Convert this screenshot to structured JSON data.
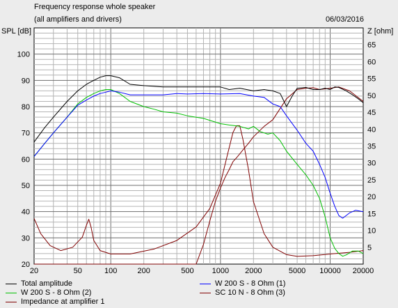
{
  "chart_data": {
    "type": "line",
    "title": "Frequency response whole speaker",
    "subtitle": "(all amplifiers and drivers)",
    "date": "06/03/2016",
    "ylabel_left": "SPL [dB]",
    "ylabel_right": "Z [ohm]",
    "x_scale": "log",
    "xlim": [
      20,
      20000
    ],
    "ylim_left": [
      20,
      110
    ],
    "ylim_right": [
      0,
      70
    ],
    "x_ticks": [
      20,
      50,
      100,
      200,
      500,
      1000,
      2000,
      5000,
      10000,
      20000
    ],
    "x_tick_labels": [
      "20",
      "50",
      "100",
      "200",
      "500",
      "1000",
      "2000",
      "5000",
      "10000",
      "20000"
    ],
    "y_left_ticks": [
      20,
      30,
      40,
      50,
      60,
      70,
      80,
      90,
      100
    ],
    "y_left_tick_labels": [
      "20",
      "30",
      "40",
      "50",
      "60",
      "70",
      "80",
      "90",
      "100"
    ],
    "y_right_ticks": [
      5,
      10,
      15,
      20,
      25,
      30,
      35,
      40,
      45,
      50,
      55,
      60,
      65
    ],
    "y_right_tick_labels": [
      "5",
      "10",
      "15",
      "20",
      "25",
      "30",
      "35",
      "40",
      "45",
      "50",
      "55",
      "60",
      "65"
    ],
    "grid": true,
    "series": [
      {
        "name": "Total amplitude",
        "color": "#000000",
        "axis": "left",
        "x": [
          20,
          25,
          30,
          40,
          50,
          60,
          70,
          80,
          90,
          100,
          120,
          150,
          200,
          300,
          400,
          500,
          700,
          1000,
          1200,
          1500,
          2000,
          2500,
          3000,
          3500,
          4000,
          4500,
          5000,
          6000,
          7000,
          8000,
          9000,
          10000,
          11000,
          12000,
          14000,
          16000,
          18000,
          20000
        ],
        "y": [
          66.5,
          72,
          76,
          82,
          86,
          88.5,
          90,
          91.2,
          91.8,
          91.8,
          91,
          88.5,
          88,
          87.5,
          87.5,
          87.5,
          87.5,
          87.5,
          86.5,
          87,
          86,
          86.5,
          86,
          85,
          80,
          84,
          87,
          87.3,
          86.5,
          86.5,
          87,
          86.5,
          87.5,
          87.3,
          86,
          84.5,
          83,
          81.5
        ]
      },
      {
        "name": "W 200 S - 8 Ohm (1)",
        "color": "#0000ff",
        "axis": "left",
        "x": [
          20,
          25,
          30,
          40,
          50,
          60,
          70,
          80,
          90,
          100,
          120,
          150,
          200,
          300,
          400,
          500,
          700,
          1000,
          1500,
          2000,
          2500,
          3000,
          3500,
          4000,
          5000,
          6000,
          7000,
          8000,
          9000,
          10000,
          11000,
          12000,
          13000,
          15000,
          17000,
          20000
        ],
        "y": [
          61,
          66,
          70,
          76,
          80.5,
          82.5,
          84,
          85,
          85.5,
          86,
          85.5,
          84.5,
          84.5,
          84.5,
          85,
          84.8,
          85,
          84.8,
          85,
          84,
          83.5,
          81,
          80,
          76.5,
          71,
          66,
          63,
          58,
          53,
          47,
          42,
          38.5,
          37.5,
          39.5,
          40.5,
          40
        ]
      },
      {
        "name": "W 200 S - 8 Ohm (2)",
        "color": "#00c000",
        "axis": "left",
        "x": [
          20,
          25,
          30,
          40,
          50,
          60,
          70,
          80,
          90,
          100,
          120,
          150,
          200,
          250,
          300,
          400,
          500,
          700,
          1000,
          1200,
          1500,
          1800,
          2000,
          2300,
          2700,
          3000,
          3500,
          4000,
          5000,
          6000,
          7000,
          8000,
          9000,
          10000,
          11000,
          12000,
          13000,
          14000,
          16000,
          18000,
          20000
        ],
        "y": [
          61,
          66,
          70,
          76,
          81,
          83.5,
          85,
          86,
          86.5,
          86.5,
          85,
          82,
          80,
          79,
          78,
          77.5,
          76.5,
          75.5,
          73.5,
          73,
          72.5,
          71.5,
          72.5,
          70.5,
          69.5,
          70,
          67,
          63,
          58,
          54,
          50,
          45,
          38,
          30,
          26,
          24,
          23,
          23.5,
          25,
          25,
          24
        ]
      },
      {
        "name": "SC 10 N - 8 Ohm (3)",
        "color": "#800000",
        "axis": "left",
        "x": [
          20,
          50,
          100,
          200,
          400,
          500,
          600,
          700,
          800,
          900,
          1000,
          1100,
          1200,
          1300,
          1400,
          1500,
          1600,
          1800,
          2000,
          2500,
          3000,
          4000,
          5000,
          6000,
          7000,
          8000,
          10000,
          12000,
          15000,
          20000
        ],
        "y": [
          20,
          20,
          20,
          20,
          20,
          20,
          20,
          27.5,
          36.5,
          44,
          49,
          53,
          56,
          59,
          60.5,
          62,
          63.5,
          66,
          68.5,
          72.5,
          75,
          83,
          86.5,
          87,
          87.2,
          86.5,
          87,
          87.5,
          86,
          82
        ]
      },
      {
        "name": "Impedance at amplifier 1",
        "color": "#800000",
        "axis": "right",
        "x": [
          20,
          23,
          28,
          35,
          45,
          55,
          60,
          63,
          66,
          70,
          80,
          100,
          150,
          250,
          400,
          600,
          800,
          1000,
          1150,
          1300,
          1400,
          1500,
          1600,
          1800,
          2000,
          2500,
          3000,
          4000,
          5000,
          7000,
          10000,
          15000,
          20000
        ],
        "y": [
          13.5,
          9,
          5.5,
          4,
          5,
          8,
          11.5,
          13.3,
          11,
          7,
          4,
          3,
          3,
          4.5,
          7,
          11,
          16.5,
          24,
          32,
          39,
          41,
          41,
          37,
          28,
          18.5,
          9,
          5,
          2.8,
          2.3,
          2.5,
          3,
          3.5,
          4
        ]
      }
    ],
    "legend": {
      "placement": "bottom",
      "entries": [
        {
          "label": "Total amplitude",
          "color": "#000000"
        },
        {
          "label": "W 200 S - 8 Ohm (1)",
          "color": "#0000ff"
        },
        {
          "label": "W 200 S - 8 Ohm (2)",
          "color": "#00c000"
        },
        {
          "label": "SC 10 N - 8 Ohm (3)",
          "color": "#800000"
        },
        {
          "label": "Impedance at amplifier 1",
          "color": "#800000"
        }
      ]
    }
  }
}
